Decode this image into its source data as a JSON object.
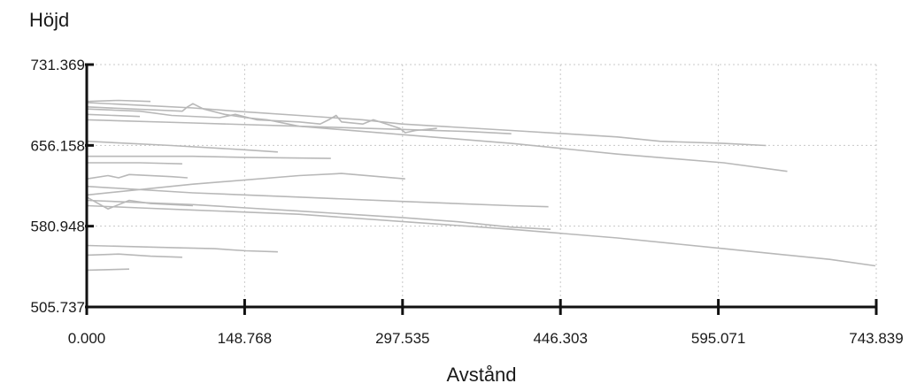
{
  "chart_data": {
    "type": "line",
    "ylabel": "Höjd",
    "xlabel": "Avstånd",
    "xlim": [
      0,
      743.839
    ],
    "ylim": [
      505.737,
      731.369
    ],
    "x_ticks": [
      "0.000",
      "148.768",
      "297.535",
      "446.303",
      "595.071",
      "743.839"
    ],
    "y_ticks": [
      "505.737",
      "580.948",
      "656.158",
      "731.369"
    ],
    "grid": true,
    "legend": "none",
    "line_color": "#b8b8b8",
    "axis_color": "#111111",
    "grid_color": "#c8c8c8",
    "series": [
      {
        "x": [
          0,
          60,
          100,
          140,
          200,
          260,
          297,
          400,
          500,
          540,
          600,
          640
        ],
        "y": [
          696,
          693,
          691,
          688,
          684,
          680,
          676,
          670,
          664,
          660,
          658,
          656
        ]
      },
      {
        "x": [
          0,
          90,
          95,
          100,
          110,
          130,
          150,
          170,
          180,
          200,
          300,
          400,
          500,
          600,
          660
        ],
        "y": [
          692,
          688,
          692,
          695,
          690,
          685,
          682,
          680,
          678,
          674,
          666,
          658,
          648,
          640,
          632
        ]
      },
      {
        "x": [
          0,
          30,
          60
        ],
        "y": [
          697,
          698,
          697
        ]
      },
      {
        "x": [
          0,
          50,
          80,
          125,
          140,
          160,
          200,
          220,
          228,
          235,
          240,
          260,
          270,
          295,
          300,
          310,
          330
        ],
        "y": [
          690,
          688,
          684,
          682,
          685,
          680,
          678,
          676,
          680,
          684,
          678,
          676,
          680,
          672,
          668,
          670,
          672
        ]
      },
      {
        "x": [
          0,
          50
        ],
        "y": [
          685,
          683
        ]
      },
      {
        "x": [
          0,
          100,
          200,
          297,
          360,
          400
        ],
        "y": [
          680,
          677,
          674,
          671,
          669,
          667
        ]
      },
      {
        "x": [
          0,
          80,
          150,
          180
        ],
        "y": [
          660,
          656,
          652,
          650
        ]
      },
      {
        "x": [
          0,
          60,
          100,
          150,
          230
        ],
        "y": [
          646,
          646,
          646,
          645,
          644
        ]
      },
      {
        "x": [
          0,
          50,
          90
        ],
        "y": [
          640,
          640,
          639
        ]
      },
      {
        "x": [
          0,
          20,
          30,
          40,
          80,
          95
        ],
        "y": [
          625,
          628,
          626,
          629,
          627,
          626
        ]
      },
      {
        "x": [
          0,
          100,
          200,
          240,
          300
        ],
        "y": [
          610,
          620,
          628,
          630,
          625
        ]
      },
      {
        "x": [
          0,
          100,
          200,
          297,
          400,
          435
        ],
        "y": [
          618,
          612,
          608,
          604,
          600,
          599
        ]
      },
      {
        "x": [
          0,
          20,
          40,
          60,
          100
        ],
        "y": [
          608,
          597,
          605,
          602,
          600
        ]
      },
      {
        "x": [
          0,
          50,
          100,
          150,
          200,
          297,
          350,
          400,
          437
        ],
        "y": [
          605,
          603,
          601,
          598,
          595,
          589,
          585,
          580,
          578
        ]
      },
      {
        "x": [
          0,
          50,
          100,
          150,
          200,
          300,
          400,
          500,
          600,
          700,
          743
        ],
        "y": [
          600,
          598,
          596,
          594,
          592,
          585,
          578,
          570,
          560,
          550,
          544
        ]
      },
      {
        "x": [
          0,
          40,
          80,
          120,
          150,
          180
        ],
        "y": [
          563,
          562,
          561,
          560,
          558,
          557
        ]
      },
      {
        "x": [
          0,
          30,
          60,
          90
        ],
        "y": [
          554,
          555,
          553,
          552
        ]
      },
      {
        "x": [
          0,
          40
        ],
        "y": [
          540,
          541
        ]
      }
    ]
  }
}
